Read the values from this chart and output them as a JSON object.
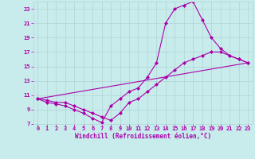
{
  "title": "",
  "xlabel": "Windchill (Refroidissement éolien,°C)",
  "bg_color": "#c8ecec",
  "line_color": "#aa00aa",
  "grid_color": "#b0d4d4",
  "xlim": [
    -0.5,
    23.5
  ],
  "ylim": [
    7,
    24
  ],
  "xticks": [
    0,
    1,
    2,
    3,
    4,
    5,
    6,
    7,
    8,
    9,
    10,
    11,
    12,
    13,
    14,
    15,
    16,
    17,
    18,
    19,
    20,
    21,
    22,
    23
  ],
  "yticks": [
    7,
    9,
    11,
    13,
    15,
    17,
    19,
    21,
    23
  ],
  "curve1_x": [
    0,
    1,
    2,
    3,
    4,
    5,
    6,
    7,
    8,
    9,
    10,
    11,
    12,
    13,
    14,
    15,
    16,
    17,
    18,
    19,
    20,
    21,
    22,
    23
  ],
  "curve1_y": [
    10.5,
    10.0,
    9.8,
    9.5,
    9.0,
    8.5,
    7.8,
    7.2,
    9.5,
    10.5,
    11.5,
    12.0,
    13.5,
    15.5,
    21.0,
    23.0,
    23.5,
    24.0,
    21.5,
    19.0,
    17.5,
    16.5,
    16.0,
    15.5
  ],
  "curve2_x": [
    0,
    1,
    2,
    3,
    4,
    5,
    6,
    7,
    8,
    9,
    10,
    11,
    12,
    13,
    14,
    15,
    16,
    17,
    18,
    19,
    20,
    21,
    22,
    23
  ],
  "curve2_y": [
    10.5,
    10.3,
    10.0,
    10.0,
    9.5,
    9.0,
    8.5,
    8.0,
    7.5,
    8.5,
    10.0,
    10.5,
    11.5,
    12.5,
    13.5,
    14.5,
    15.5,
    16.0,
    16.5,
    17.0,
    17.0,
    16.5,
    16.0,
    15.5
  ],
  "curve3_x": [
    0,
    23
  ],
  "curve3_y": [
    10.5,
    15.5
  ]
}
